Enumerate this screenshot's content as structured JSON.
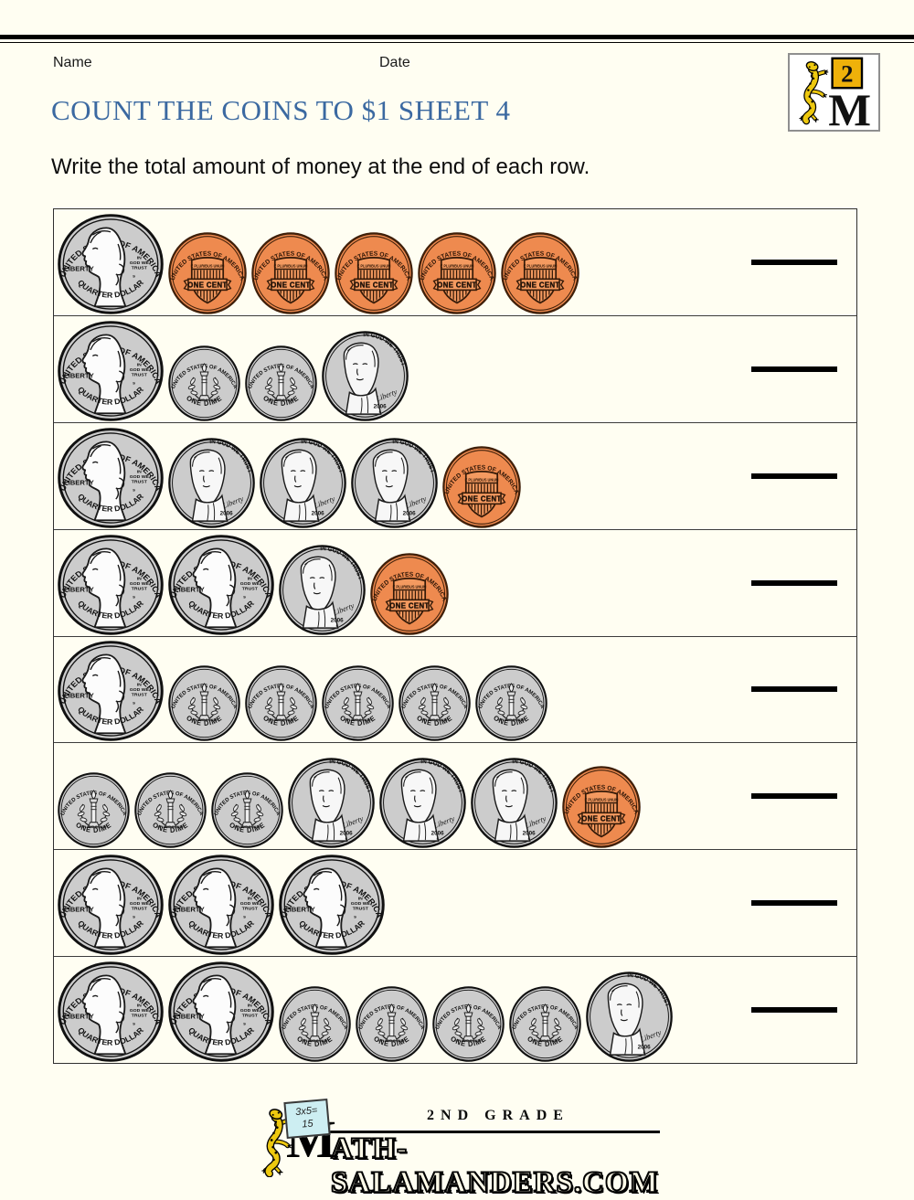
{
  "page": {
    "name_label": "Name",
    "date_label": "Date",
    "title": "COUNT THE COINS TO $1 SHEET 4",
    "instruction": "Write the total amount of money at the end of each row."
  },
  "badge": {
    "grade": "2",
    "letter": "M"
  },
  "coins": {
    "quarter": {
      "top": "UNITED STATES OF AMERICA",
      "left": "LIBERTY",
      "motto": [
        "IN",
        "GOD WE",
        "TRUST"
      ],
      "mint": "s",
      "bottom": "QUARTER DOLLAR"
    },
    "penny": {
      "top": "UNITED STATES OF AMERICA",
      "motto": "E PLURIBUS UNUM",
      "banner": "ONE CENT"
    },
    "dime": {
      "top": "UNITED STATES OF AMERICA",
      "motto": "E PLURIBUS UNUM",
      "bottom": "ONE DIME"
    },
    "nickel": {
      "top": "IN GOD WE TRUST",
      "script": "Liberty",
      "year": "2006",
      "mint": "s"
    }
  },
  "rows": [
    {
      "coins": [
        "quarter",
        "penny",
        "penny",
        "penny",
        "penny",
        "penny"
      ]
    },
    {
      "coins": [
        "quarter",
        "dime",
        "dime",
        "nickel"
      ]
    },
    {
      "coins": [
        "quarter",
        "nickel",
        "nickel",
        "nickel",
        "penny"
      ]
    },
    {
      "coins": [
        "quarter",
        "quarter",
        "nickel",
        "penny"
      ]
    },
    {
      "coins": [
        "quarter",
        "dime",
        "dime",
        "dime",
        "dime",
        "dime"
      ]
    },
    {
      "coins": [
        "dime",
        "dime",
        "dime",
        "nickel",
        "nickel",
        "nickel",
        "penny"
      ]
    },
    {
      "coins": [
        "quarter",
        "quarter",
        "quarter"
      ]
    },
    {
      "coins": [
        "quarter",
        "quarter",
        "dime",
        "dime",
        "dime",
        "dime",
        "nickel"
      ]
    }
  ],
  "footer": {
    "grade_line": "2ND GRADE",
    "logo_m": "M",
    "logo_rest": "ATH-SALAMANDERS.COM",
    "sign_line1": "3x5=",
    "sign_line2": "15"
  },
  "colors": {
    "title_blue": "#3b69a1",
    "penny_orange": "#ee8a4f",
    "silver_gray": "#cccccc",
    "salamander_yellow": "#edc80f",
    "badge_square_yellow": "#efb10a",
    "sign_blue": "#cdeef2"
  }
}
